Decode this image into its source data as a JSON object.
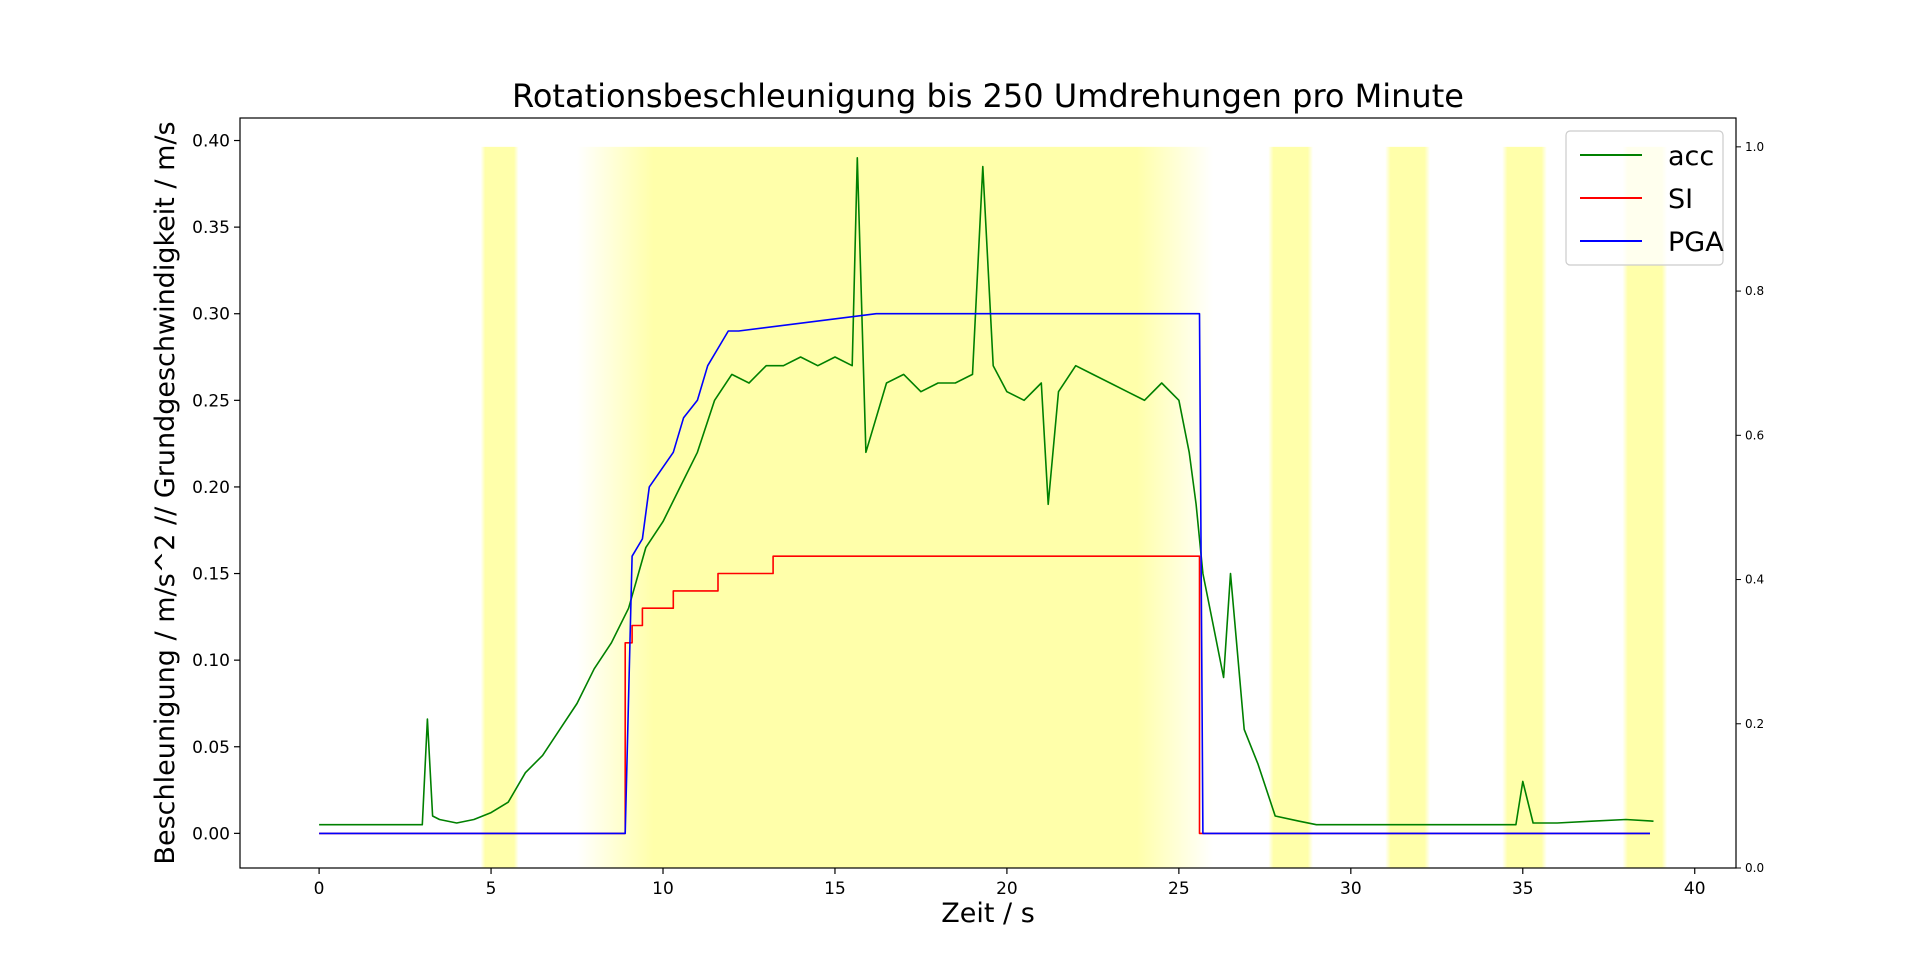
{
  "chart_data": {
    "type": "line",
    "title": "Rotationsbeschleunigung bis 250 Umdrehungen pro Minute",
    "xlabel": "Zeit / s",
    "ylabel": "Beschleunigung / m/s^2 // Grundgeschwindigkeit / m/s",
    "xlim": [
      -2.3,
      41.2
    ],
    "ylim": [
      -0.02,
      0.413
    ],
    "xticks": [
      "0",
      "5",
      "10",
      "15",
      "20",
      "25",
      "30",
      "35",
      "40"
    ],
    "yticks": [
      "0.00",
      "0.05",
      "0.10",
      "0.15",
      "0.20",
      "0.25",
      "0.30",
      "0.35",
      "0.40"
    ],
    "y2lim": [
      0.0,
      1.04
    ],
    "y2ticks": [
      "0.0",
      "0.2",
      "0.4",
      "0.6",
      "0.8",
      "1.0"
    ],
    "grid": false,
    "legend_position": "top-right",
    "highlight_bands": [
      {
        "x": [
          4.7,
          5.8
        ],
        "value": 1.0
      },
      {
        "x": [
          7.5,
          26.0
        ],
        "value": 1.0
      },
      {
        "x": [
          27.6,
          28.9
        ],
        "value": 1.0
      },
      {
        "x": [
          31.0,
          32.3
        ],
        "value": 1.0
      },
      {
        "x": [
          34.4,
          35.7
        ],
        "value": 1.0
      },
      {
        "x": [
          37.9,
          39.2
        ],
        "value": 1.0
      }
    ],
    "series": [
      {
        "name": "acc",
        "color": "#008000",
        "x": [
          0,
          1,
          2,
          3,
          3.15,
          3.3,
          3.5,
          4,
          4.5,
          5,
          5.5,
          6,
          6.5,
          7,
          7.5,
          8,
          8.5,
          9,
          9.5,
          10,
          10.5,
          11,
          11.5,
          12,
          12.5,
          13,
          13.5,
          14,
          14.5,
          15,
          15.5,
          15.65,
          15.9,
          16.5,
          17,
          17.5,
          18,
          18.5,
          19,
          19.3,
          19.6,
          20,
          20.5,
          21,
          21.2,
          21.5,
          22,
          22.5,
          23,
          23.5,
          24,
          24.5,
          25,
          25.3,
          25.5,
          25.7,
          26,
          26.3,
          26.5,
          26.9,
          27.3,
          27.8,
          28.5,
          29,
          30,
          31,
          32,
          33,
          34,
          34.8,
          35,
          35.3,
          36,
          37,
          38,
          38.8
        ],
        "values": [
          0.005,
          0.005,
          0.005,
          0.005,
          0.066,
          0.01,
          0.008,
          0.006,
          0.008,
          0.012,
          0.018,
          0.035,
          0.045,
          0.06,
          0.075,
          0.095,
          0.11,
          0.13,
          0.165,
          0.18,
          0.2,
          0.22,
          0.25,
          0.265,
          0.26,
          0.27,
          0.27,
          0.275,
          0.27,
          0.275,
          0.27,
          0.39,
          0.22,
          0.26,
          0.265,
          0.255,
          0.26,
          0.26,
          0.265,
          0.385,
          0.27,
          0.255,
          0.25,
          0.26,
          0.19,
          0.255,
          0.27,
          0.265,
          0.26,
          0.255,
          0.25,
          0.26,
          0.25,
          0.22,
          0.19,
          0.15,
          0.12,
          0.09,
          0.15,
          0.06,
          0.04,
          0.01,
          0.007,
          0.005,
          0.005,
          0.005,
          0.005,
          0.005,
          0.005,
          0.005,
          0.03,
          0.006,
          0.006,
          0.007,
          0.008,
          0.007
        ]
      },
      {
        "name": "SI",
        "color": "#ff0000",
        "x": [
          0,
          8.9,
          8.9,
          9.1,
          9.1,
          9.4,
          9.4,
          10.3,
          10.3,
          11.6,
          11.6,
          13.2,
          13.2,
          25.6,
          25.6,
          38.7
        ],
        "values": [
          0,
          0,
          0.11,
          0.11,
          0.12,
          0.12,
          0.13,
          0.13,
          0.14,
          0.14,
          0.15,
          0.15,
          0.16,
          0.16,
          0,
          0
        ]
      },
      {
        "name": "PGA",
        "color": "#0000ff",
        "x": [
          0,
          8.9,
          9.1,
          9.4,
          9.6,
          10.3,
          10.6,
          11,
          11.3,
          11.6,
          11.9,
          12.2,
          16.2,
          25.6,
          25.7,
          38.7
        ],
        "values": [
          0,
          0,
          0.16,
          0.17,
          0.2,
          0.22,
          0.24,
          0.25,
          0.27,
          0.28,
          0.29,
          0.29,
          0.3,
          0.3,
          0,
          0
        ]
      }
    ]
  }
}
